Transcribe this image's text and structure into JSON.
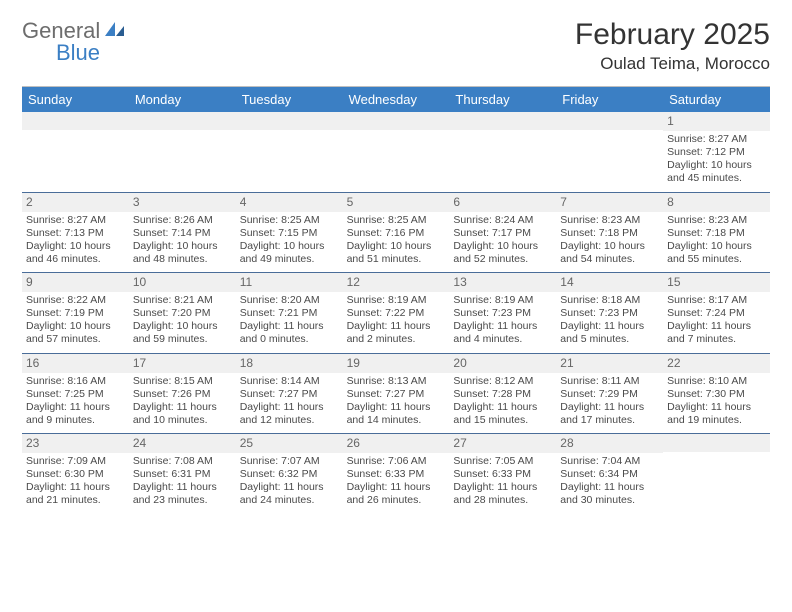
{
  "logo": {
    "text1": "General",
    "text2": "Blue"
  },
  "title": "February 2025",
  "location": "Oulad Teima, Morocco",
  "colors": {
    "header_bg": "#3b7fc4",
    "header_fg": "#ffffff",
    "daynum_bg": "#f0f0f0",
    "sep": "#4a6d99",
    "text": "#4a4a4a"
  },
  "font": {
    "family": "Arial",
    "body_size_pt": 8,
    "title_size_pt": 22
  },
  "day_headers": [
    "Sunday",
    "Monday",
    "Tuesday",
    "Wednesday",
    "Thursday",
    "Friday",
    "Saturday"
  ],
  "weeks": [
    [
      null,
      null,
      null,
      null,
      null,
      null,
      {
        "n": "1",
        "sunrise": "8:27 AM",
        "sunset": "7:12 PM",
        "daylight": "10 hours and 45 minutes."
      }
    ],
    [
      {
        "n": "2",
        "sunrise": "8:27 AM",
        "sunset": "7:13 PM",
        "daylight": "10 hours and 46 minutes."
      },
      {
        "n": "3",
        "sunrise": "8:26 AM",
        "sunset": "7:14 PM",
        "daylight": "10 hours and 48 minutes."
      },
      {
        "n": "4",
        "sunrise": "8:25 AM",
        "sunset": "7:15 PM",
        "daylight": "10 hours and 49 minutes."
      },
      {
        "n": "5",
        "sunrise": "8:25 AM",
        "sunset": "7:16 PM",
        "daylight": "10 hours and 51 minutes."
      },
      {
        "n": "6",
        "sunrise": "8:24 AM",
        "sunset": "7:17 PM",
        "daylight": "10 hours and 52 minutes."
      },
      {
        "n": "7",
        "sunrise": "8:23 AM",
        "sunset": "7:18 PM",
        "daylight": "10 hours and 54 minutes."
      },
      {
        "n": "8",
        "sunrise": "8:23 AM",
        "sunset": "7:18 PM",
        "daylight": "10 hours and 55 minutes."
      }
    ],
    [
      {
        "n": "9",
        "sunrise": "8:22 AM",
        "sunset": "7:19 PM",
        "daylight": "10 hours and 57 minutes."
      },
      {
        "n": "10",
        "sunrise": "8:21 AM",
        "sunset": "7:20 PM",
        "daylight": "10 hours and 59 minutes."
      },
      {
        "n": "11",
        "sunrise": "8:20 AM",
        "sunset": "7:21 PM",
        "daylight": "11 hours and 0 minutes."
      },
      {
        "n": "12",
        "sunrise": "8:19 AM",
        "sunset": "7:22 PM",
        "daylight": "11 hours and 2 minutes."
      },
      {
        "n": "13",
        "sunrise": "8:19 AM",
        "sunset": "7:23 PM",
        "daylight": "11 hours and 4 minutes."
      },
      {
        "n": "14",
        "sunrise": "8:18 AM",
        "sunset": "7:23 PM",
        "daylight": "11 hours and 5 minutes."
      },
      {
        "n": "15",
        "sunrise": "8:17 AM",
        "sunset": "7:24 PM",
        "daylight": "11 hours and 7 minutes."
      }
    ],
    [
      {
        "n": "16",
        "sunrise": "8:16 AM",
        "sunset": "7:25 PM",
        "daylight": "11 hours and 9 minutes."
      },
      {
        "n": "17",
        "sunrise": "8:15 AM",
        "sunset": "7:26 PM",
        "daylight": "11 hours and 10 minutes."
      },
      {
        "n": "18",
        "sunrise": "8:14 AM",
        "sunset": "7:27 PM",
        "daylight": "11 hours and 12 minutes."
      },
      {
        "n": "19",
        "sunrise": "8:13 AM",
        "sunset": "7:27 PM",
        "daylight": "11 hours and 14 minutes."
      },
      {
        "n": "20",
        "sunrise": "8:12 AM",
        "sunset": "7:28 PM",
        "daylight": "11 hours and 15 minutes."
      },
      {
        "n": "21",
        "sunrise": "8:11 AM",
        "sunset": "7:29 PM",
        "daylight": "11 hours and 17 minutes."
      },
      {
        "n": "22",
        "sunrise": "8:10 AM",
        "sunset": "7:30 PM",
        "daylight": "11 hours and 19 minutes."
      }
    ],
    [
      {
        "n": "23",
        "sunrise": "7:09 AM",
        "sunset": "6:30 PM",
        "daylight": "11 hours and 21 minutes."
      },
      {
        "n": "24",
        "sunrise": "7:08 AM",
        "sunset": "6:31 PM",
        "daylight": "11 hours and 23 minutes."
      },
      {
        "n": "25",
        "sunrise": "7:07 AM",
        "sunset": "6:32 PM",
        "daylight": "11 hours and 24 minutes."
      },
      {
        "n": "26",
        "sunrise": "7:06 AM",
        "sunset": "6:33 PM",
        "daylight": "11 hours and 26 minutes."
      },
      {
        "n": "27",
        "sunrise": "7:05 AM",
        "sunset": "6:33 PM",
        "daylight": "11 hours and 28 minutes."
      },
      {
        "n": "28",
        "sunrise": "7:04 AM",
        "sunset": "6:34 PM",
        "daylight": "11 hours and 30 minutes."
      },
      null
    ]
  ],
  "labels": {
    "sunrise": "Sunrise:",
    "sunset": "Sunset:",
    "daylight": "Daylight:"
  }
}
